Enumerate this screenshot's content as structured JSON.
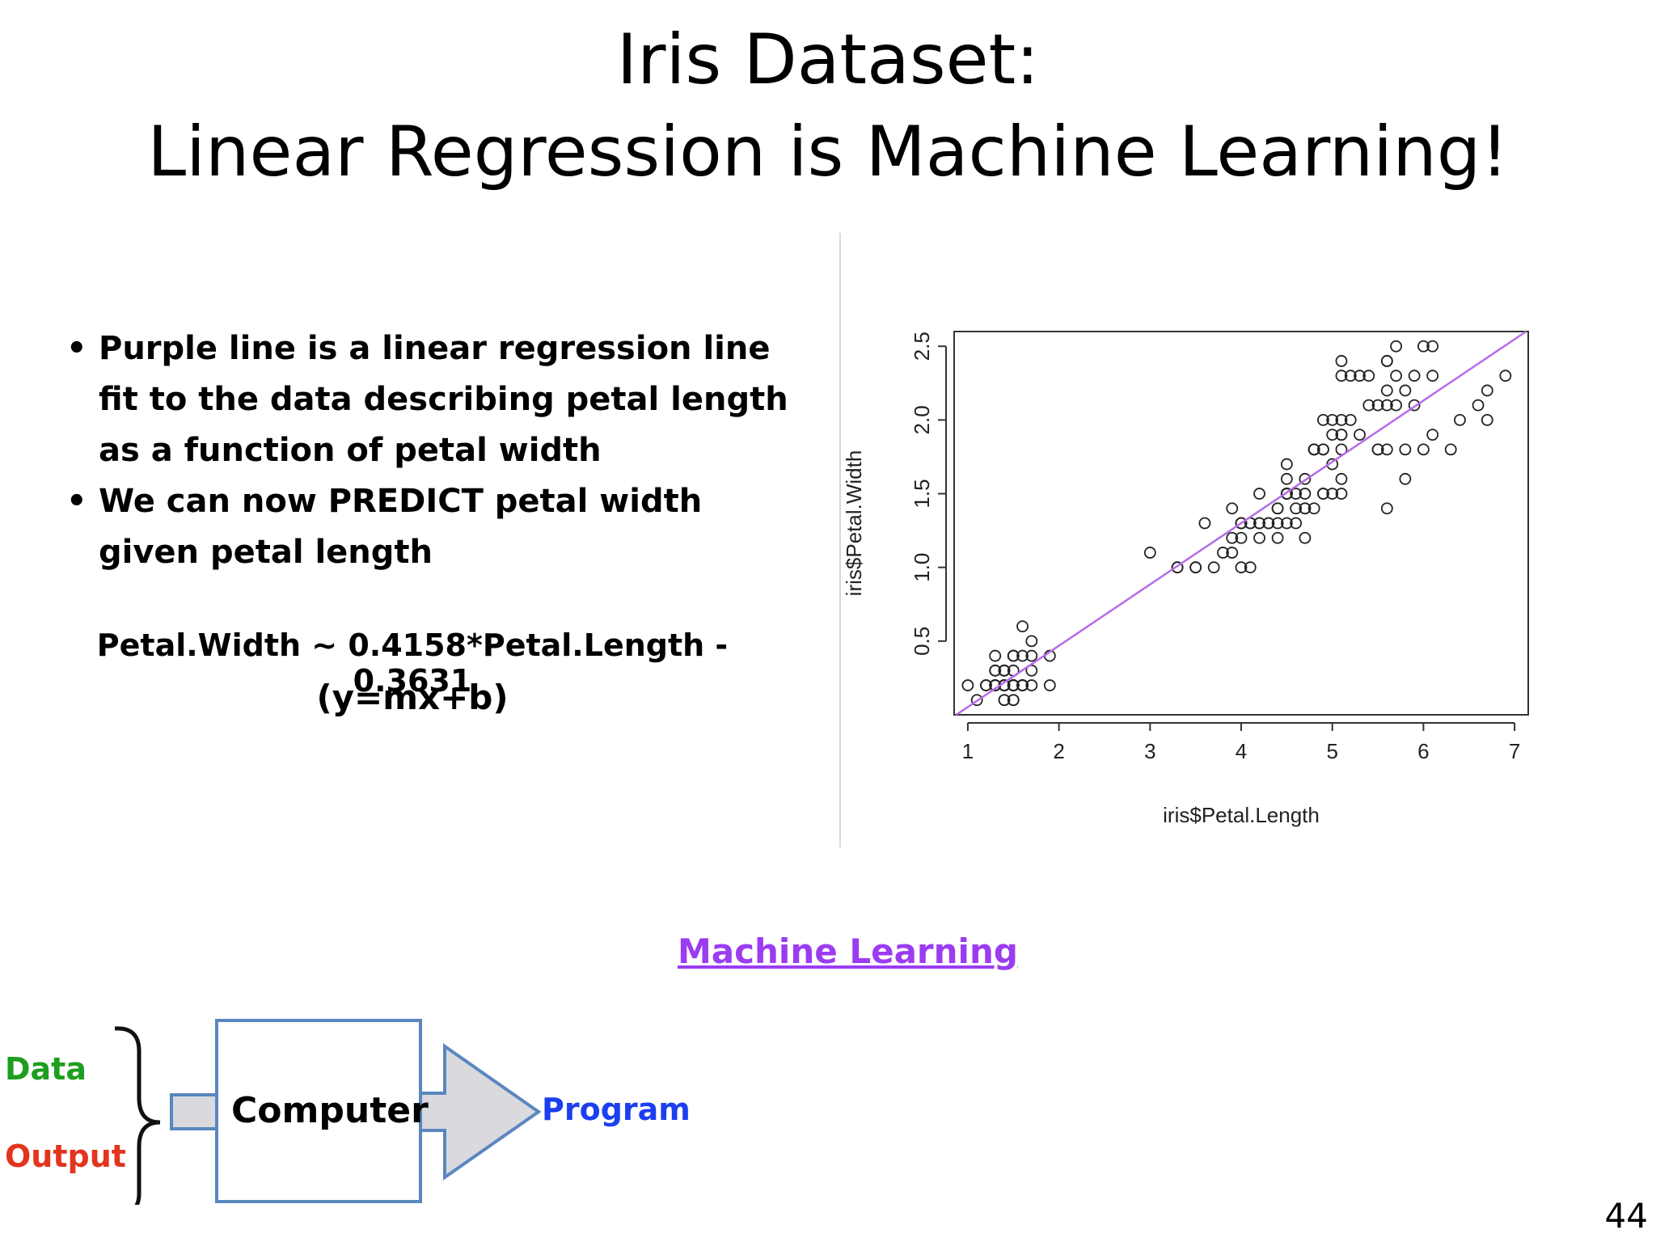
{
  "slide": {
    "title_line1": "Iris Dataset:",
    "title_line2": "Linear Regression is Machine Learning!",
    "bullets": [
      "Purple line is a linear regression line fit to the data describing petal length as a function of petal width",
      "We can now PREDICT petal width given petal length"
    ],
    "equation": "Petal.Width ~ 0.4158*Petal.Length - 0.3631",
    "equation_form": "(y=mx+b)",
    "link_text": "Machine Learning",
    "page_number": "44"
  },
  "diagram": {
    "input_data": "Data",
    "input_output": "Output",
    "box_label": "Computer",
    "result_label": "Program",
    "colors": {
      "data": "#1e9e1e",
      "output": "#e3341e",
      "program": "#1b3ff0",
      "box_border": "#5a87bf",
      "arrow_fill": "#d9d9de"
    }
  },
  "chart_data": {
    "type": "scatter",
    "title": "",
    "xlabel": "iris$Petal.Length",
    "ylabel": "iris$Petal.Width",
    "xlim": [
      0.85,
      7.15
    ],
    "ylim": [
      0.0,
      2.6
    ],
    "x_ticks": [
      1,
      2,
      3,
      4,
      5,
      6,
      7
    ],
    "y_ticks": [
      0.5,
      1.0,
      1.5,
      2.0,
      2.5
    ],
    "grid": false,
    "marker": "open-circle",
    "regression_line": {
      "slope": 0.4158,
      "intercept": -0.3631,
      "color": "#b66be8"
    },
    "points": [
      [
        1.4,
        0.2
      ],
      [
        1.4,
        0.2
      ],
      [
        1.3,
        0.2
      ],
      [
        1.5,
        0.2
      ],
      [
        1.4,
        0.2
      ],
      [
        1.7,
        0.4
      ],
      [
        1.4,
        0.3
      ],
      [
        1.5,
        0.2
      ],
      [
        1.4,
        0.2
      ],
      [
        1.5,
        0.1
      ],
      [
        1.5,
        0.2
      ],
      [
        1.6,
        0.2
      ],
      [
        1.4,
        0.1
      ],
      [
        1.1,
        0.1
      ],
      [
        1.2,
        0.2
      ],
      [
        1.5,
        0.4
      ],
      [
        1.3,
        0.4
      ],
      [
        1.4,
        0.3
      ],
      [
        1.7,
        0.3
      ],
      [
        1.5,
        0.3
      ],
      [
        1.7,
        0.2
      ],
      [
        1.5,
        0.4
      ],
      [
        1.0,
        0.2
      ],
      [
        1.7,
        0.5
      ],
      [
        1.9,
        0.2
      ],
      [
        1.6,
        0.2
      ],
      [
        1.6,
        0.4
      ],
      [
        1.5,
        0.2
      ],
      [
        1.4,
        0.2
      ],
      [
        1.6,
        0.2
      ],
      [
        1.6,
        0.2
      ],
      [
        1.5,
        0.4
      ],
      [
        1.5,
        0.1
      ],
      [
        1.4,
        0.2
      ],
      [
        1.5,
        0.2
      ],
      [
        1.2,
        0.2
      ],
      [
        1.3,
        0.2
      ],
      [
        1.4,
        0.1
      ],
      [
        1.3,
        0.2
      ],
      [
        1.5,
        0.2
      ],
      [
        1.3,
        0.3
      ],
      [
        1.3,
        0.3
      ],
      [
        1.3,
        0.2
      ],
      [
        1.6,
        0.6
      ],
      [
        1.9,
        0.4
      ],
      [
        1.4,
        0.3
      ],
      [
        1.6,
        0.2
      ],
      [
        1.4,
        0.2
      ],
      [
        1.5,
        0.2
      ],
      [
        1.4,
        0.2
      ],
      [
        4.7,
        1.4
      ],
      [
        4.5,
        1.5
      ],
      [
        4.9,
        1.5
      ],
      [
        4.0,
        1.3
      ],
      [
        4.6,
        1.5
      ],
      [
        4.5,
        1.3
      ],
      [
        4.7,
        1.6
      ],
      [
        3.3,
        1.0
      ],
      [
        4.6,
        1.3
      ],
      [
        3.9,
        1.4
      ],
      [
        3.5,
        1.0
      ],
      [
        4.2,
        1.5
      ],
      [
        4.0,
        1.0
      ],
      [
        4.7,
        1.4
      ],
      [
        3.6,
        1.3
      ],
      [
        4.4,
        1.4
      ],
      [
        4.5,
        1.5
      ],
      [
        4.1,
        1.0
      ],
      [
        4.5,
        1.5
      ],
      [
        3.9,
        1.1
      ],
      [
        4.8,
        1.8
      ],
      [
        4.0,
        1.3
      ],
      [
        4.9,
        1.5
      ],
      [
        4.7,
        1.2
      ],
      [
        4.3,
        1.3
      ],
      [
        4.4,
        1.4
      ],
      [
        4.8,
        1.4
      ],
      [
        5.0,
        1.7
      ],
      [
        4.5,
        1.5
      ],
      [
        3.5,
        1.0
      ],
      [
        3.8,
        1.1
      ],
      [
        3.7,
        1.0
      ],
      [
        3.9,
        1.2
      ],
      [
        5.1,
        1.6
      ],
      [
        4.5,
        1.5
      ],
      [
        4.5,
        1.6
      ],
      [
        4.7,
        1.5
      ],
      [
        4.4,
        1.3
      ],
      [
        4.1,
        1.3
      ],
      [
        4.0,
        1.3
      ],
      [
        4.4,
        1.2
      ],
      [
        4.6,
        1.4
      ],
      [
        4.0,
        1.2
      ],
      [
        3.3,
        1.0
      ],
      [
        4.2,
        1.3
      ],
      [
        4.2,
        1.2
      ],
      [
        4.2,
        1.3
      ],
      [
        4.3,
        1.3
      ],
      [
        3.0,
        1.1
      ],
      [
        4.1,
        1.3
      ],
      [
        6.0,
        2.5
      ],
      [
        5.1,
        1.9
      ],
      [
        5.9,
        2.1
      ],
      [
        5.6,
        1.8
      ],
      [
        5.8,
        2.2
      ],
      [
        6.6,
        2.1
      ],
      [
        4.5,
        1.7
      ],
      [
        6.3,
        1.8
      ],
      [
        5.8,
        1.8
      ],
      [
        6.1,
        2.5
      ],
      [
        5.1,
        2.0
      ],
      [
        5.3,
        1.9
      ],
      [
        5.5,
        2.1
      ],
      [
        5.0,
        2.0
      ],
      [
        5.1,
        2.4
      ],
      [
        5.3,
        2.3
      ],
      [
        5.5,
        1.8
      ],
      [
        6.7,
        2.2
      ],
      [
        6.9,
        2.3
      ],
      [
        5.0,
        1.5
      ],
      [
        5.7,
        2.3
      ],
      [
        4.9,
        2.0
      ],
      [
        6.7,
        2.0
      ],
      [
        4.9,
        1.8
      ],
      [
        5.7,
        2.1
      ],
      [
        6.0,
        1.8
      ],
      [
        4.8,
        1.8
      ],
      [
        4.9,
        1.8
      ],
      [
        5.6,
        2.1
      ],
      [
        5.8,
        1.6
      ],
      [
        6.1,
        1.9
      ],
      [
        6.4,
        2.0
      ],
      [
        5.6,
        2.2
      ],
      [
        5.1,
        1.5
      ],
      [
        5.6,
        1.4
      ],
      [
        6.1,
        2.3
      ],
      [
        5.6,
        2.4
      ],
      [
        5.5,
        1.8
      ],
      [
        4.8,
        1.8
      ],
      [
        5.4,
        2.1
      ],
      [
        5.6,
        2.4
      ],
      [
        5.1,
        2.3
      ],
      [
        5.1,
        1.9
      ],
      [
        5.9,
        2.3
      ],
      [
        5.7,
        2.5
      ],
      [
        5.2,
        2.3
      ],
      [
        5.0,
        1.9
      ],
      [
        5.2,
        2.0
      ],
      [
        5.4,
        2.3
      ],
      [
        5.1,
        1.8
      ]
    ]
  }
}
